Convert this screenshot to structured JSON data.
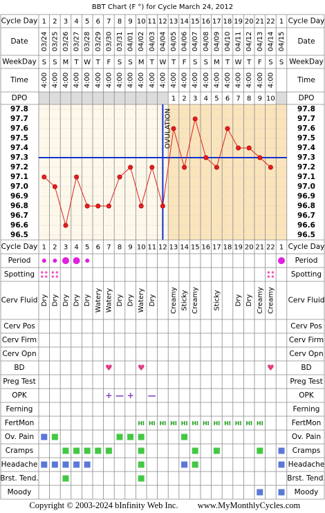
{
  "title": "BBT Chart (F °) for Cycle March 24, 2012",
  "header": {
    "cycle_day": {
      "label": "Cycle Day",
      "values": [
        1,
        2,
        3,
        4,
        5,
        6,
        7,
        8,
        9,
        10,
        11,
        12,
        13,
        14,
        15,
        16,
        17,
        18,
        19,
        20,
        21,
        22,
        1
      ]
    },
    "date": {
      "label": "Date",
      "values": [
        "03/24",
        "03/25",
        "03/26",
        "03/27",
        "03/28",
        "03/29",
        "03/30",
        "03/31",
        "04/01",
        "04/02",
        "04/03",
        "04/04",
        "04/05",
        "04/06",
        "04/07",
        "04/08",
        "04/09",
        "04/10",
        "04/11",
        "04/12",
        "04/13",
        "04/14",
        "04/15"
      ]
    },
    "weekday": {
      "label": "WeekDay",
      "values": [
        "S",
        "S",
        "M",
        "T",
        "W",
        "T",
        "F",
        "S",
        "S",
        "M",
        "T",
        "W",
        "T",
        "F",
        "S",
        "S",
        "M",
        "T",
        "W",
        "T",
        "F",
        "S",
        "S"
      ]
    },
    "time": {
      "label": "Time",
      "values": [
        "4:00",
        "4:00",
        "4:00",
        "4:00",
        "4:00",
        "4:00",
        "4:00",
        "4:00",
        "4:00",
        "4:00",
        "4:00",
        "4:00",
        "4:00",
        "4:00",
        "4:00",
        "4:00",
        "4:00",
        "4:00",
        "4:00",
        "4:00",
        "4:00",
        "4:00",
        null
      ]
    },
    "dpo": {
      "label": "DPO",
      "values": [
        null,
        null,
        null,
        null,
        null,
        null,
        null,
        null,
        null,
        null,
        null,
        null,
        1,
        2,
        3,
        4,
        5,
        6,
        7,
        8,
        9,
        10,
        null
      ]
    }
  },
  "chart_data": {
    "type": "line",
    "color": "#e02020",
    "values": [
      97.1,
      97.0,
      96.6,
      97.1,
      96.8,
      96.8,
      96.8,
      97.1,
      97.2,
      96.8,
      97.2,
      96.8,
      97.6,
      97.2,
      97.7,
      97.3,
      97.2,
      97.6,
      97.4,
      97.4,
      97.3,
      97.2,
      null
    ],
    "ylim": [
      96.45,
      97.85
    ],
    "yticks": [
      97.8,
      97.7,
      97.6,
      97.5,
      97.4,
      97.3,
      97.2,
      97.1,
      {
        "value": 97,
        "label": "97.0"
      },
      96.9,
      96.8,
      96.7,
      96.6,
      96.5
    ],
    "grid": true,
    "coverline": 97.3,
    "coverline_color": "#1030d0",
    "ovulation_day": 12,
    "ovulation_label": "OVULATION"
  },
  "rows": [
    {
      "label": "Period",
      "kind": "dot",
      "color": "#e020e0",
      "values": [
        "small",
        "small",
        "large",
        "large",
        "small",
        null,
        null,
        null,
        null,
        null,
        null,
        null,
        null,
        null,
        null,
        null,
        null,
        null,
        null,
        null,
        null,
        null,
        "large"
      ]
    },
    {
      "label": "Spotting",
      "kind": "spot",
      "values": [
        "#f060c0",
        "#f060c0",
        null,
        null,
        null,
        null,
        null,
        null,
        null,
        null,
        null,
        null,
        null,
        null,
        null,
        null,
        null,
        null,
        null,
        null,
        null,
        "#f060c0",
        null
      ]
    },
    {
      "label": "Cerv Fluid",
      "kind": "rot",
      "values": [
        "Dry",
        "Dry",
        "Dry",
        "Dry",
        "Dry",
        "Watery",
        "Watery",
        "Dry",
        "Dry",
        "Watery",
        "Dry",
        null,
        "Creamy",
        "Sticky",
        "Creamy",
        null,
        "Sticky",
        null,
        "Dry",
        "Dry",
        "Creamy",
        "Creamy",
        null
      ]
    },
    {
      "label": "Cerv Pos"
    },
    {
      "label": "Cerv Firm"
    },
    {
      "label": "Cerv Opn"
    },
    {
      "label": "BD",
      "kind": "symbol",
      "color": "#e04080",
      "values": [
        null,
        null,
        null,
        null,
        null,
        null,
        "♥",
        null,
        null,
        "♥",
        null,
        null,
        null,
        null,
        null,
        null,
        null,
        null,
        null,
        null,
        null,
        "♥",
        null
      ]
    },
    {
      "label": "Preg Test"
    },
    {
      "label": "OPK",
      "kind": "symbol",
      "color": "#8040c0",
      "values": [
        null,
        null,
        null,
        null,
        null,
        null,
        "+",
        "—",
        "+",
        null,
        "—",
        null,
        null,
        null,
        null,
        null,
        null,
        null,
        null,
        null,
        null,
        null,
        null
      ]
    },
    {
      "label": "Ferning"
    },
    {
      "label": "FertMon",
      "kind": "symbol",
      "color": "#20a020",
      "values": [
        null,
        null,
        null,
        null,
        null,
        null,
        null,
        null,
        null,
        "HI",
        "HI",
        "HI",
        "HI",
        "HI",
        "HI",
        "HI",
        "HI",
        "HI",
        "HI",
        "HI",
        "HI",
        null,
        null
      ]
    },
    {
      "label": "Ov. Pain",
      "kind": "square",
      "values": [
        "#5a78d8",
        "#44c844",
        null,
        null,
        null,
        null,
        null,
        "#44c844",
        "#44c844",
        "#44c844",
        null,
        null,
        null,
        "#44c844",
        null,
        null,
        null,
        null,
        null,
        null,
        null,
        null,
        null
      ]
    },
    {
      "label": "Cramps",
      "kind": "square",
      "values": [
        null,
        null,
        "#44c844",
        "#44c844",
        "#44c844",
        "#44c844",
        "#44c844",
        null,
        null,
        "#44c844",
        null,
        null,
        null,
        null,
        "#44c844",
        null,
        "#44c844",
        null,
        null,
        null,
        "#44c844",
        null,
        "#5a78d8"
      ]
    },
    {
      "label": "Headache",
      "kind": "square",
      "values": [
        "#5a78d8",
        "#5a78d8",
        "#5a78d8",
        "#5a78d8",
        "#5a78d8",
        null,
        null,
        null,
        null,
        "#44c844",
        null,
        null,
        null,
        "#5a78d8",
        "#44c844",
        null,
        null,
        null,
        null,
        null,
        null,
        null,
        "#5a78d8"
      ]
    },
    {
      "label": "Brst. Tend.",
      "kind": "square",
      "values": [
        null,
        null,
        "#44c844",
        null,
        null,
        null,
        null,
        null,
        null,
        "#44c844",
        null,
        null,
        null,
        null,
        null,
        null,
        null,
        null,
        null,
        null,
        null,
        null,
        null
      ]
    },
    {
      "label": "Moody",
      "kind": "square",
      "values": [
        null,
        null,
        null,
        null,
        null,
        null,
        null,
        null,
        null,
        null,
        null,
        null,
        null,
        null,
        null,
        null,
        null,
        null,
        null,
        null,
        "#5a78d8",
        null,
        "#5a78d8"
      ]
    }
  ],
  "footer": {
    "copyright": "Copyright © 2003-2024 bInfinity Web Inc.",
    "site": "www.MyMonthlyCycles.com"
  }
}
